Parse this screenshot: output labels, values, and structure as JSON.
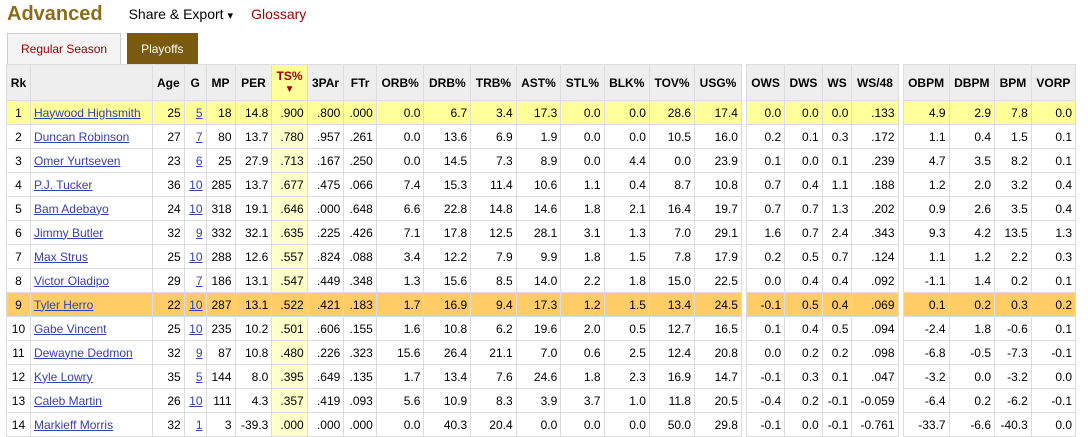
{
  "header": {
    "title": "Advanced",
    "share_label": "Share & Export",
    "share_caret": "▾",
    "glossary_label": "Glossary"
  },
  "tabs": [
    {
      "label": "Regular Season",
      "active": false
    },
    {
      "label": "Playoffs",
      "active": true
    }
  ],
  "columns": [
    "Rk",
    "",
    "Age",
    "G",
    "MP",
    "PER",
    "TS%",
    "3PAr",
    "FTr",
    "ORB%",
    "DRB%",
    "TRB%",
    "AST%",
    "STL%",
    "BLK%",
    "TOV%",
    "USG%",
    "OWS",
    "DWS",
    "WS",
    "WS/48",
    "OBPM",
    "DBPM",
    "BPM",
    "VORP"
  ],
  "sort_arrow": "▼",
  "rows": [
    [
      "1",
      "Haywood Highsmith",
      "25",
      "5",
      "18",
      "14.8",
      ".900",
      ".800",
      ".000",
      "0.0",
      "6.7",
      "3.4",
      "17.3",
      "0.0",
      "0.0",
      "28.6",
      "17.4",
      "0.0",
      "0.0",
      "0.0",
      ".133",
      "4.9",
      "2.9",
      "7.8",
      "0.0"
    ],
    [
      "2",
      "Duncan Robinson",
      "27",
      "7",
      "80",
      "13.7",
      ".780",
      ".957",
      ".261",
      "0.0",
      "13.6",
      "6.9",
      "1.9",
      "0.0",
      "0.0",
      "10.5",
      "16.0",
      "0.2",
      "0.1",
      "0.3",
      ".172",
      "1.1",
      "0.4",
      "1.5",
      "0.1"
    ],
    [
      "3",
      "Omer Yurtseven",
      "23",
      "6",
      "25",
      "27.9",
      ".713",
      ".167",
      ".250",
      "0.0",
      "14.5",
      "7.3",
      "8.9",
      "0.0",
      "4.4",
      "0.0",
      "23.9",
      "0.1",
      "0.0",
      "0.1",
      ".239",
      "4.7",
      "3.5",
      "8.2",
      "0.1"
    ],
    [
      "4",
      "P.J. Tucker",
      "36",
      "10",
      "285",
      "13.7",
      ".677",
      ".475",
      ".066",
      "7.4",
      "15.3",
      "11.4",
      "10.6",
      "1.1",
      "0.4",
      "8.7",
      "10.8",
      "0.7",
      "0.4",
      "1.1",
      ".188",
      "1.2",
      "2.0",
      "3.2",
      "0.4"
    ],
    [
      "5",
      "Bam Adebayo",
      "24",
      "10",
      "318",
      "19.1",
      ".646",
      ".000",
      ".648",
      "6.6",
      "22.8",
      "14.8",
      "14.6",
      "1.8",
      "2.1",
      "16.4",
      "19.7",
      "0.7",
      "0.7",
      "1.3",
      ".202",
      "0.9",
      "2.6",
      "3.5",
      "0.4"
    ],
    [
      "6",
      "Jimmy Butler",
      "32",
      "9",
      "332",
      "32.1",
      ".635",
      ".225",
      ".426",
      "7.1",
      "17.8",
      "12.5",
      "28.1",
      "3.1",
      "1.3",
      "7.0",
      "29.1",
      "1.6",
      "0.7",
      "2.4",
      ".343",
      "9.3",
      "4.2",
      "13.5",
      "1.3"
    ],
    [
      "7",
      "Max Strus",
      "25",
      "10",
      "288",
      "12.6",
      ".557",
      ".824",
      ".088",
      "3.4",
      "12.2",
      "7.9",
      "9.9",
      "1.8",
      "1.5",
      "7.8",
      "17.9",
      "0.2",
      "0.5",
      "0.7",
      ".124",
      "1.1",
      "1.2",
      "2.2",
      "0.3"
    ],
    [
      "8",
      "Victor Oladipo",
      "29",
      "7",
      "186",
      "13.1",
      ".547",
      ".449",
      ".348",
      "1.3",
      "15.6",
      "8.5",
      "14.0",
      "2.2",
      "1.8",
      "15.0",
      "22.5",
      "0.0",
      "0.4",
      "0.4",
      ".092",
      "-1.1",
      "1.4",
      "0.2",
      "0.1"
    ],
    [
      "9",
      "Tyler Herro",
      "22",
      "10",
      "287",
      "13.1",
      ".522",
      ".421",
      ".183",
      "1.7",
      "16.9",
      "9.4",
      "17.3",
      "1.2",
      "1.5",
      "13.4",
      "24.5",
      "-0.1",
      "0.5",
      "0.4",
      ".069",
      "0.1",
      "0.2",
      "0.3",
      "0.2"
    ],
    [
      "10",
      "Gabe Vincent",
      "25",
      "10",
      "235",
      "10.2",
      ".501",
      ".606",
      ".155",
      "1.6",
      "10.8",
      "6.2",
      "19.6",
      "2.0",
      "0.5",
      "12.7",
      "16.5",
      "0.1",
      "0.4",
      "0.5",
      ".094",
      "-2.4",
      "1.8",
      "-0.6",
      "0.1"
    ],
    [
      "11",
      "Dewayne Dedmon",
      "32",
      "9",
      "87",
      "10.8",
      ".480",
      ".226",
      ".323",
      "15.6",
      "26.4",
      "21.1",
      "7.0",
      "0.6",
      "2.5",
      "12.4",
      "20.8",
      "0.0",
      "0.2",
      "0.2",
      ".098",
      "-6.8",
      "-0.5",
      "-7.3",
      "-0.1"
    ],
    [
      "12",
      "Kyle Lowry",
      "35",
      "5",
      "144",
      "8.0",
      ".395",
      ".649",
      ".135",
      "1.7",
      "13.4",
      "7.6",
      "24.6",
      "1.8",
      "2.3",
      "16.9",
      "14.7",
      "-0.1",
      "0.3",
      "0.1",
      ".047",
      "-3.2",
      "0.0",
      "-3.2",
      "0.0"
    ],
    [
      "13",
      "Caleb Martin",
      "26",
      "10",
      "111",
      "4.3",
      ".357",
      ".419",
      ".093",
      "5.6",
      "10.9",
      "8.3",
      "3.9",
      "3.7",
      "1.0",
      "11.8",
      "20.5",
      "-0.4",
      "0.2",
      "-0.1",
      "-0.059",
      "-6.4",
      "0.2",
      "-6.2",
      "-0.1"
    ],
    [
      "14",
      "Markieff Morris",
      "32",
      "1",
      "3",
      "-39.3",
      ".000",
      ".000",
      ".000",
      "0.0",
      "40.3",
      "20.4",
      "0.0",
      "0.0",
      "0.0",
      "50.0",
      "29.8",
      "-0.1",
      "0.0",
      "-0.1",
      "-0.761",
      "-33.7",
      "-6.6",
      "-40.3",
      "0.0"
    ]
  ],
  "highlight": {
    "yellow_row": 0,
    "orange_row": 8
  }
}
